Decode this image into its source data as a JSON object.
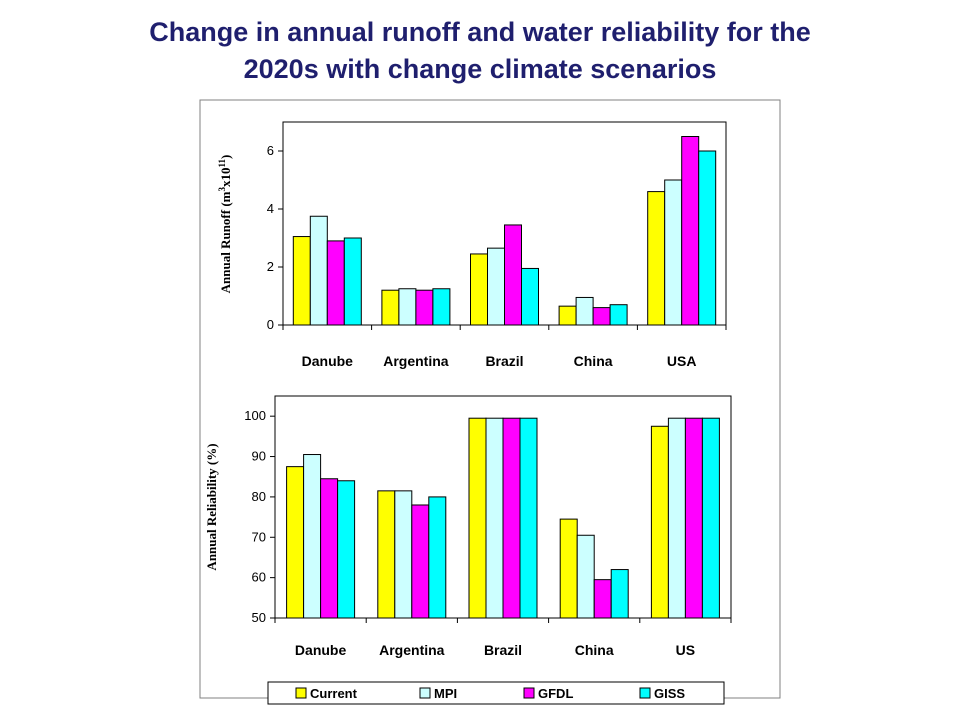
{
  "title_line1": "Change in annual runoff and water reliability for the",
  "title_line2": "2020s with change climate scenarios",
  "chart_data": [
    {
      "type": "bar",
      "ylabel": "Annual Runoff (m³x10¹¹)",
      "ylabel_main": "Annual Runoff (m",
      "ylabel_sup1": "3",
      "ylabel_mid": "x10",
      "ylabel_sup2": "11",
      "ylabel_end": ")",
      "categories": [
        "Danube",
        "Argentina",
        "Brazil",
        "China",
        "USA"
      ],
      "ylim": [
        0,
        7
      ],
      "yticks": [
        0,
        2,
        4,
        6
      ],
      "series": [
        {
          "name": "Current",
          "color": "#ffff00",
          "values": [
            3.05,
            1.2,
            2.45,
            0.65,
            4.6
          ]
        },
        {
          "name": "MPI",
          "color": "#ccffff",
          "values": [
            3.75,
            1.25,
            2.65,
            0.95,
            5.0
          ]
        },
        {
          "name": "GFDL",
          "color": "#ff00ff",
          "values": [
            2.9,
            1.2,
            3.45,
            0.6,
            6.5
          ]
        },
        {
          "name": "GISS",
          "color": "#00ffff",
          "values": [
            3.0,
            1.25,
            1.95,
            0.7,
            6.0
          ]
        }
      ]
    },
    {
      "type": "bar",
      "ylabel": "Annual Reliability (%)",
      "categories": [
        "Danube",
        "Argentina",
        "Brazil",
        "China",
        "US"
      ],
      "ylim": [
        50,
        105
      ],
      "yticks": [
        50,
        60,
        70,
        80,
        90,
        100
      ],
      "series": [
        {
          "name": "Current",
          "color": "#ffff00",
          "values": [
            87.5,
            81.5,
            99.5,
            74.5,
            97.5
          ]
        },
        {
          "name": "MPI",
          "color": "#ccffff",
          "values": [
            90.5,
            81.5,
            99.5,
            70.5,
            99.5
          ]
        },
        {
          "name": "GFDL",
          "color": "#ff00ff",
          "values": [
            84.5,
            78.0,
            99.5,
            59.5,
            99.5
          ]
        },
        {
          "name": "GISS",
          "color": "#00ffff",
          "values": [
            84.0,
            80.0,
            99.5,
            62.0,
            99.5
          ]
        }
      ],
      "legend": [
        "Current",
        "MPI",
        "GFDL",
        "GISS"
      ],
      "legend_position": "bottom"
    }
  ]
}
